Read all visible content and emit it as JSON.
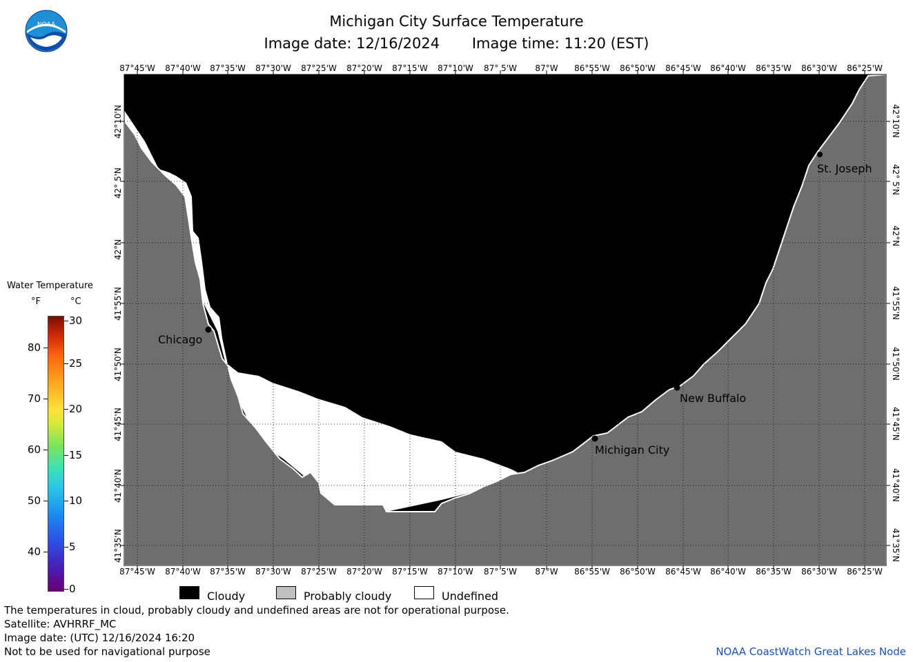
{
  "header": {
    "title": "Michigan City Surface Temperature",
    "image_date": "Image date: 12/16/2024",
    "image_time": "Image time: 11:20 (EST)"
  },
  "logo_text": "NOAA",
  "map": {
    "longitude_labels": [
      "87°45'W",
      "87°40'W",
      "87°35'W",
      "87°30'W",
      "87°25'W",
      "87°20'W",
      "87°15'W",
      "87°10'W",
      "87° 5'W",
      "87°W",
      "86°55'W",
      "86°50'W",
      "86°45'W",
      "86°40'W",
      "86°35'W",
      "86°30'W",
      "86°25'W"
    ],
    "latitude_labels": [
      "42°10'N",
      "42° 5'N",
      "42°N",
      "41°55'N",
      "41°50'N",
      "41°45'N",
      "41°40'N",
      "41°35'N"
    ],
    "cities": [
      {
        "name": "Chicago"
      },
      {
        "name": "St. Joseph"
      },
      {
        "name": "New Buffalo"
      },
      {
        "name": "Michigan City"
      }
    ],
    "colors": {
      "land": "#6e6e6e",
      "cloudy": "#000000",
      "undefined": "#ffffff",
      "probably_cloudy": "#c0c0c0"
    }
  },
  "temperature_legend": {
    "title": "Water Temperature",
    "unit_f": "°F",
    "unit_c": "°C",
    "fahrenheit_ticks": [
      "80",
      "70",
      "60",
      "50",
      "40"
    ],
    "celsius_ticks": [
      "30",
      "25",
      "20",
      "15",
      "10",
      "5",
      "0"
    ]
  },
  "category_legend": {
    "cloudy": "Cloudy",
    "probably_cloudy": "Probably cloudy",
    "undefined": "Undefined"
  },
  "footer": {
    "line1": "The temperatures in cloud, probably cloudy and undefined areas are not for operational purpose.",
    "line2": "Satellite: AVHRRF_MC",
    "line3": "Image date: (UTC) 12/16/2024  16:20",
    "line4": "Not to be used for navigational purpose",
    "credit": "NOAA CoastWatch Great Lakes Node"
  }
}
